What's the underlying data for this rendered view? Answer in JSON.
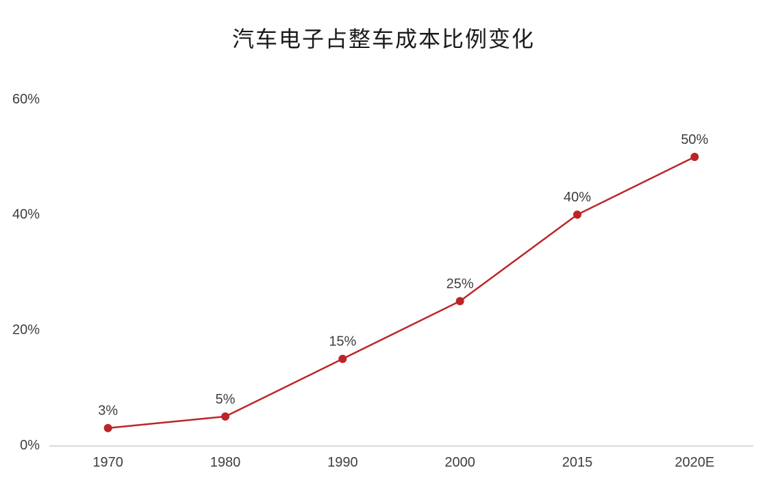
{
  "page": {
    "title": "汽车电子占整车成本比例变化"
  },
  "chart_data": {
    "type": "line",
    "title": "汽车电子占整车成本比例变化",
    "categories": [
      "1970",
      "1980",
      "1990",
      "2000",
      "2015",
      "2020E"
    ],
    "values": [
      3,
      5,
      15,
      25,
      40,
      50
    ],
    "point_labels": [
      "3%",
      "5%",
      "15%",
      "25%",
      "40%",
      "50%"
    ],
    "xlabel": "",
    "ylabel": "",
    "ylim": [
      0,
      60
    ],
    "y_ticks": [
      0,
      20,
      40,
      60
    ],
    "y_tick_labels": [
      "0%",
      "20%",
      "40%",
      "60%"
    ],
    "grid": false,
    "legend": "none",
    "line_color": "#bd2427",
    "marker_color": "#bd2427",
    "axis_line_color": "#d9d9d9",
    "label_color": "#3d3d3d",
    "title_color": "#1a1a1a"
  }
}
